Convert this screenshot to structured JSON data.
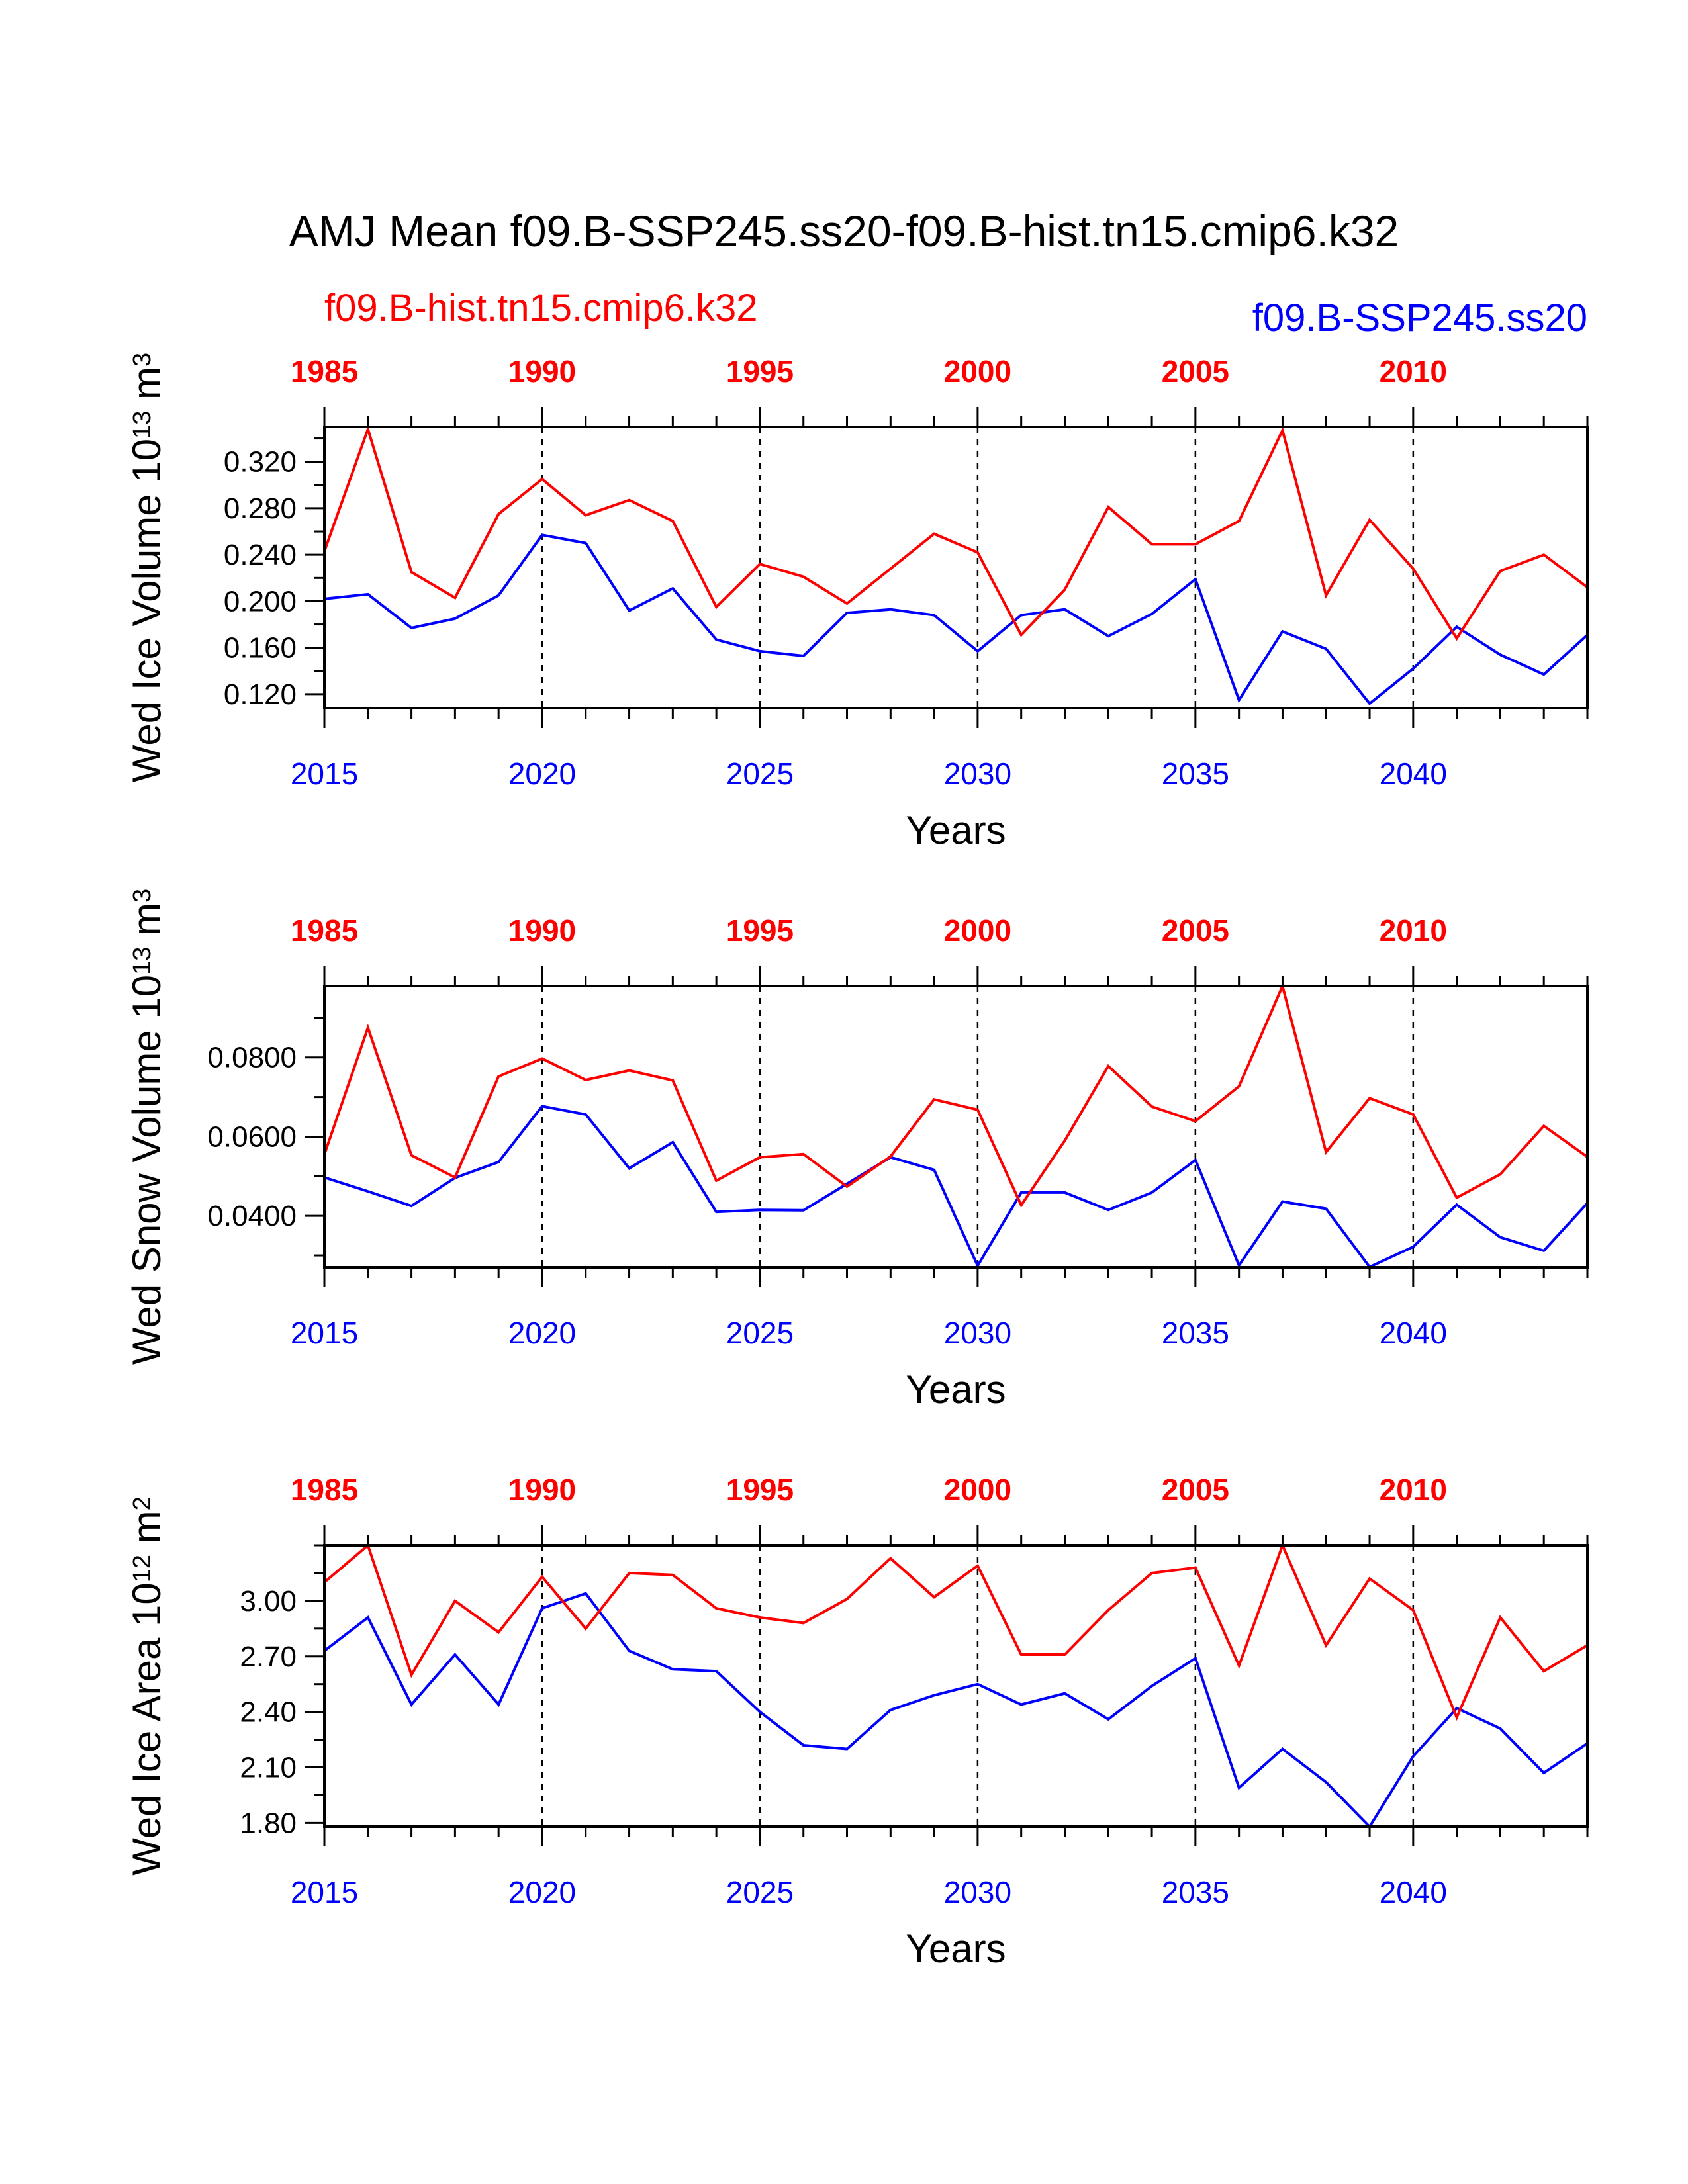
{
  "title": "AMJ Mean f09.B-SSP245.ss20-f09.B-hist.tn15.cmip6.k32",
  "legend": {
    "hist_label": "f09.B-hist.tn15.cmip6.k32",
    "ssp_label": "f09.B-SSP245.ss20"
  },
  "colors": {
    "hist": "#ff0000",
    "ssp": "#0000ff",
    "axis": "#000000"
  },
  "chart_data": [
    {
      "type": "line",
      "ylabel_main": "Wed Ice Volume 10",
      "ylabel_exp": "13",
      "ylabel_unit": " m",
      "ylabel_unit_exp": "3",
      "xlabel": "Years",
      "ylim": [
        0.108,
        0.35
      ],
      "yticks": [
        "0.120",
        "0.160",
        "0.200",
        "0.240",
        "0.280",
        "0.320"
      ],
      "ytick_values": [
        0.12,
        0.16,
        0.2,
        0.24,
        0.28,
        0.32
      ],
      "x_bottom": [
        2015,
        2016,
        2017,
        2018,
        2019,
        2020,
        2021,
        2022,
        2023,
        2024,
        2025,
        2026,
        2027,
        2028,
        2029,
        2030,
        2031,
        2032,
        2033,
        2034,
        2035,
        2036,
        2037,
        2038,
        2039,
        2040,
        2041,
        2042,
        2043,
        2044
      ],
      "x_top_ticks": [
        "1985",
        "1990",
        "1995",
        "2000",
        "2005",
        "2010"
      ],
      "x_bottom_ticks": [
        "2015",
        "2020",
        "2025",
        "2030",
        "2035",
        "2040"
      ],
      "series": [
        {
          "name": "f09.B-hist.tn15.cmip6.k32",
          "values": [
            0.243,
            0.348,
            0.225,
            0.203,
            0.275,
            0.305,
            0.274,
            0.287,
            0.269,
            0.195,
            0.232,
            0.221,
            0.198,
            0.228,
            0.258,
            0.242,
            0.171,
            0.21,
            0.281,
            0.249,
            0.249,
            0.269,
            0.347,
            0.205,
            0.27,
            0.228,
            0.168,
            0.226,
            0.24,
            0.212
          ]
        },
        {
          "name": "f09.B-SSP245.ss20",
          "values": [
            0.202,
            0.206,
            0.177,
            0.185,
            0.205,
            0.257,
            0.25,
            0.192,
            0.211,
            0.167,
            0.157,
            0.153,
            0.19,
            0.193,
            0.188,
            0.157,
            0.188,
            0.193,
            0.17,
            0.189,
            0.219,
            0.115,
            0.174,
            0.159,
            0.112,
            0.142,
            0.178,
            0.154,
            0.137,
            0.171
          ]
        }
      ]
    },
    {
      "type": "line",
      "ylabel_main": "Wed Snow Volume 10",
      "ylabel_exp": "13",
      "ylabel_unit": " m",
      "ylabel_unit_exp": "3",
      "xlabel": "Years",
      "ylim": [
        0.027,
        0.098
      ],
      "yticks": [
        "0.0400",
        "0.0600",
        "0.0800"
      ],
      "ytick_values": [
        0.04,
        0.06,
        0.08
      ],
      "x_bottom": [
        2015,
        2016,
        2017,
        2018,
        2019,
        2020,
        2021,
        2022,
        2023,
        2024,
        2025,
        2026,
        2027,
        2028,
        2029,
        2030,
        2031,
        2032,
        2033,
        2034,
        2035,
        2036,
        2037,
        2038,
        2039,
        2040,
        2041,
        2042,
        2043,
        2044
      ],
      "x_top_ticks": [
        "1985",
        "1990",
        "1995",
        "2000",
        "2005",
        "2010"
      ],
      "x_bottom_ticks": [
        "2015",
        "2020",
        "2025",
        "2030",
        "2035",
        "2040"
      ],
      "series": [
        {
          "name": "f09.B-hist.tn15.cmip6.k32",
          "values": [
            0.0555,
            0.0875,
            0.0553,
            0.0497,
            0.0752,
            0.0797,
            0.0743,
            0.0767,
            0.0742,
            0.0489,
            0.0548,
            0.0556,
            0.0474,
            0.055,
            0.0694,
            0.0668,
            0.0427,
            0.059,
            0.0778,
            0.0676,
            0.0639,
            0.0727,
            0.098,
            0.0561,
            0.0697,
            0.0656,
            0.0446,
            0.0505,
            0.0627,
            0.0549
          ]
        },
        {
          "name": "f09.B-SSP245.ss20",
          "values": [
            0.0497,
            0.0462,
            0.0425,
            0.0496,
            0.0536,
            0.0677,
            0.0656,
            0.052,
            0.0586,
            0.041,
            0.0415,
            0.0414,
            0.0481,
            0.0548,
            0.0516,
            0.0274,
            0.0459,
            0.0459,
            0.0415,
            0.0459,
            0.0541,
            0.0275,
            0.0436,
            0.0418,
            0.0271,
            0.0322,
            0.0428,
            0.0346,
            0.0312,
            0.0432
          ]
        }
      ]
    },
    {
      "type": "line",
      "ylabel_main": "Wed Ice Area 10",
      "ylabel_exp": "12",
      "ylabel_unit": " m",
      "ylabel_unit_exp": "2",
      "xlabel": "Years",
      "ylim": [
        1.78,
        3.3
      ],
      "yticks": [
        "1.80",
        "2.10",
        "2.40",
        "2.70",
        "3.00"
      ],
      "ytick_values": [
        1.8,
        2.1,
        2.4,
        2.7,
        3.0
      ],
      "x_bottom": [
        2015,
        2016,
        2017,
        2018,
        2019,
        2020,
        2021,
        2022,
        2023,
        2024,
        2025,
        2026,
        2027,
        2028,
        2029,
        2030,
        2031,
        2032,
        2033,
        2034,
        2035,
        2036,
        2037,
        2038,
        2039,
        2040,
        2041,
        2042,
        2043,
        2044
      ],
      "x_top_ticks": [
        "1985",
        "1990",
        "1995",
        "2000",
        "2005",
        "2010"
      ],
      "x_bottom_ticks": [
        "2015",
        "2020",
        "2025",
        "2030",
        "2035",
        "2040"
      ],
      "series": [
        {
          "name": "f09.B-hist.tn15.cmip6.k32",
          "values": [
            3.1,
            3.3,
            2.6,
            3.0,
            2.83,
            3.13,
            2.85,
            3.15,
            3.14,
            2.96,
            2.91,
            2.88,
            3.01,
            3.23,
            3.02,
            3.19,
            2.71,
            2.71,
            2.95,
            3.15,
            3.18,
            2.65,
            3.3,
            2.76,
            3.12,
            2.95,
            2.37,
            2.91,
            2.62,
            2.76
          ]
        },
        {
          "name": "f09.B-SSP245.ss20",
          "values": [
            2.73,
            2.91,
            2.44,
            2.71,
            2.44,
            2.96,
            3.04,
            2.73,
            2.63,
            2.62,
            2.4,
            2.22,
            2.2,
            2.41,
            2.49,
            2.55,
            2.44,
            2.5,
            2.36,
            2.54,
            2.69,
            1.99,
            2.2,
            2.02,
            1.78,
            2.16,
            2.42,
            2.31,
            2.07,
            2.23
          ]
        }
      ]
    }
  ]
}
